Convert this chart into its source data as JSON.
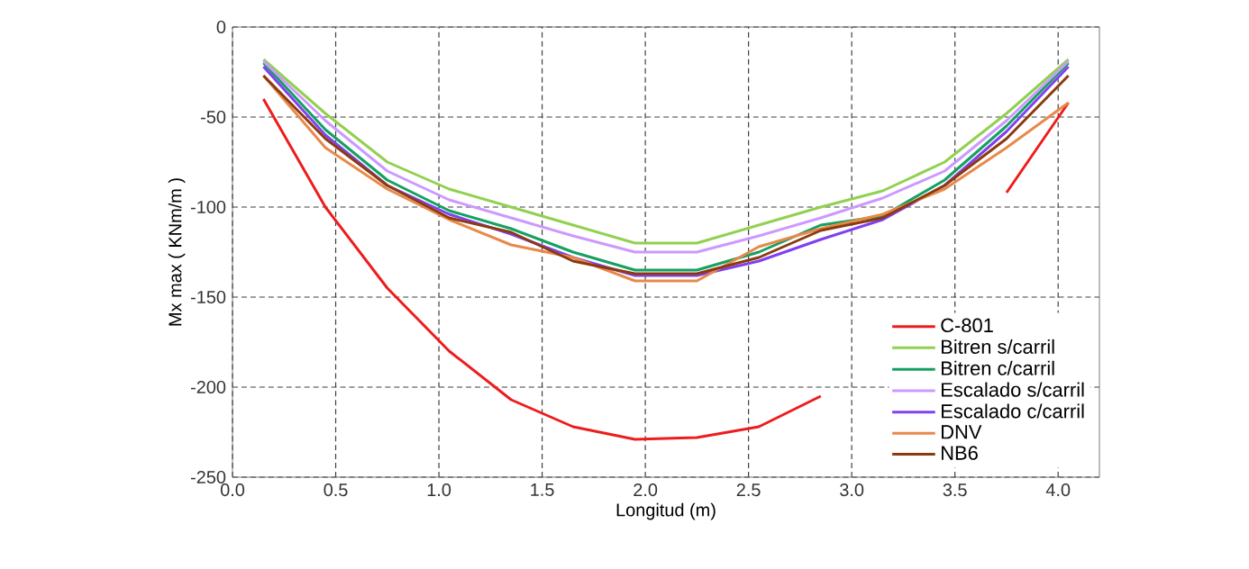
{
  "chart_data": {
    "type": "line",
    "xlabel": "Longitud  (m)",
    "ylabel": "Mx max  ( KNm/m )",
    "x": [
      0.15,
      0.45,
      0.75,
      1.05,
      1.35,
      1.65,
      1.95,
      2.25,
      2.55,
      2.85,
      3.15,
      3.45,
      3.75,
      4.05
    ],
    "series": [
      {
        "name": "C-801",
        "color": "#ee1c1c",
        "values": [
          -40,
          -100,
          -145,
          -180,
          -207,
          -222,
          -229,
          -228,
          -222,
          -205,
          null,
          null,
          -92,
          -42
        ]
      },
      {
        "name": "Bitren s/carril",
        "color": "#92d050",
        "values": [
          -18,
          -48,
          -75,
          -90,
          -100,
          -110,
          -120,
          -120,
          -110,
          -100,
          -91,
          -75,
          -48,
          -18
        ]
      },
      {
        "name": "Bitren c/carril",
        "color": "#14a060",
        "values": [
          -20,
          -57,
          -85,
          -102,
          -112,
          -125,
          -135,
          -135,
          -125,
          -110,
          -105,
          -85,
          -55,
          -20
        ]
      },
      {
        "name": "Escalado s/carril",
        "color": "#cc99ff",
        "values": [
          -19,
          -52,
          -80,
          -96,
          -106,
          -116,
          -125,
          -125,
          -116,
          -106,
          -95,
          -80,
          -52,
          -19
        ]
      },
      {
        "name": "Escalado c/carril",
        "color": "#8040f0",
        "values": [
          -22,
          -60,
          -88,
          -104,
          -115,
          -128,
          -138,
          -138,
          -130,
          -118,
          -107,
          -88,
          -58,
          -22
        ]
      },
      {
        "name": "DNV",
        "color": "#e8894a",
        "values": [
          -27,
          -67,
          -90,
          -107,
          -121,
          -128,
          -141,
          -141,
          -122,
          -112,
          -104,
          -90,
          -67,
          -42
        ]
      },
      {
        "name": "NB6",
        "color": "#8b3a0f",
        "values": [
          -27,
          -62,
          -88,
          -106,
          -114,
          -130,
          -137,
          -137,
          -128,
          -113,
          -106,
          -88,
          -62,
          -27
        ]
      }
    ],
    "xlim": [
      0,
      4.2
    ],
    "ylim": [
      -250,
      0
    ],
    "xticks": [
      {
        "value": 0,
        "label": "0.0"
      },
      {
        "value": 0.5,
        "label": "0.5"
      },
      {
        "value": 1,
        "label": "1.0"
      },
      {
        "value": 1.5,
        "label": "1.5"
      },
      {
        "value": 2,
        "label": "2.0"
      },
      {
        "value": 2.5,
        "label": "2.5"
      },
      {
        "value": 3,
        "label": "3.0"
      },
      {
        "value": 3.5,
        "label": "3.5"
      },
      {
        "value": 4,
        "label": "4.0"
      }
    ],
    "yticks": [
      0,
      -50,
      -100,
      -150,
      -200,
      -250
    ],
    "grid": true,
    "legend": "bottom right",
    "marker": "none",
    "line_style": "solid"
  }
}
